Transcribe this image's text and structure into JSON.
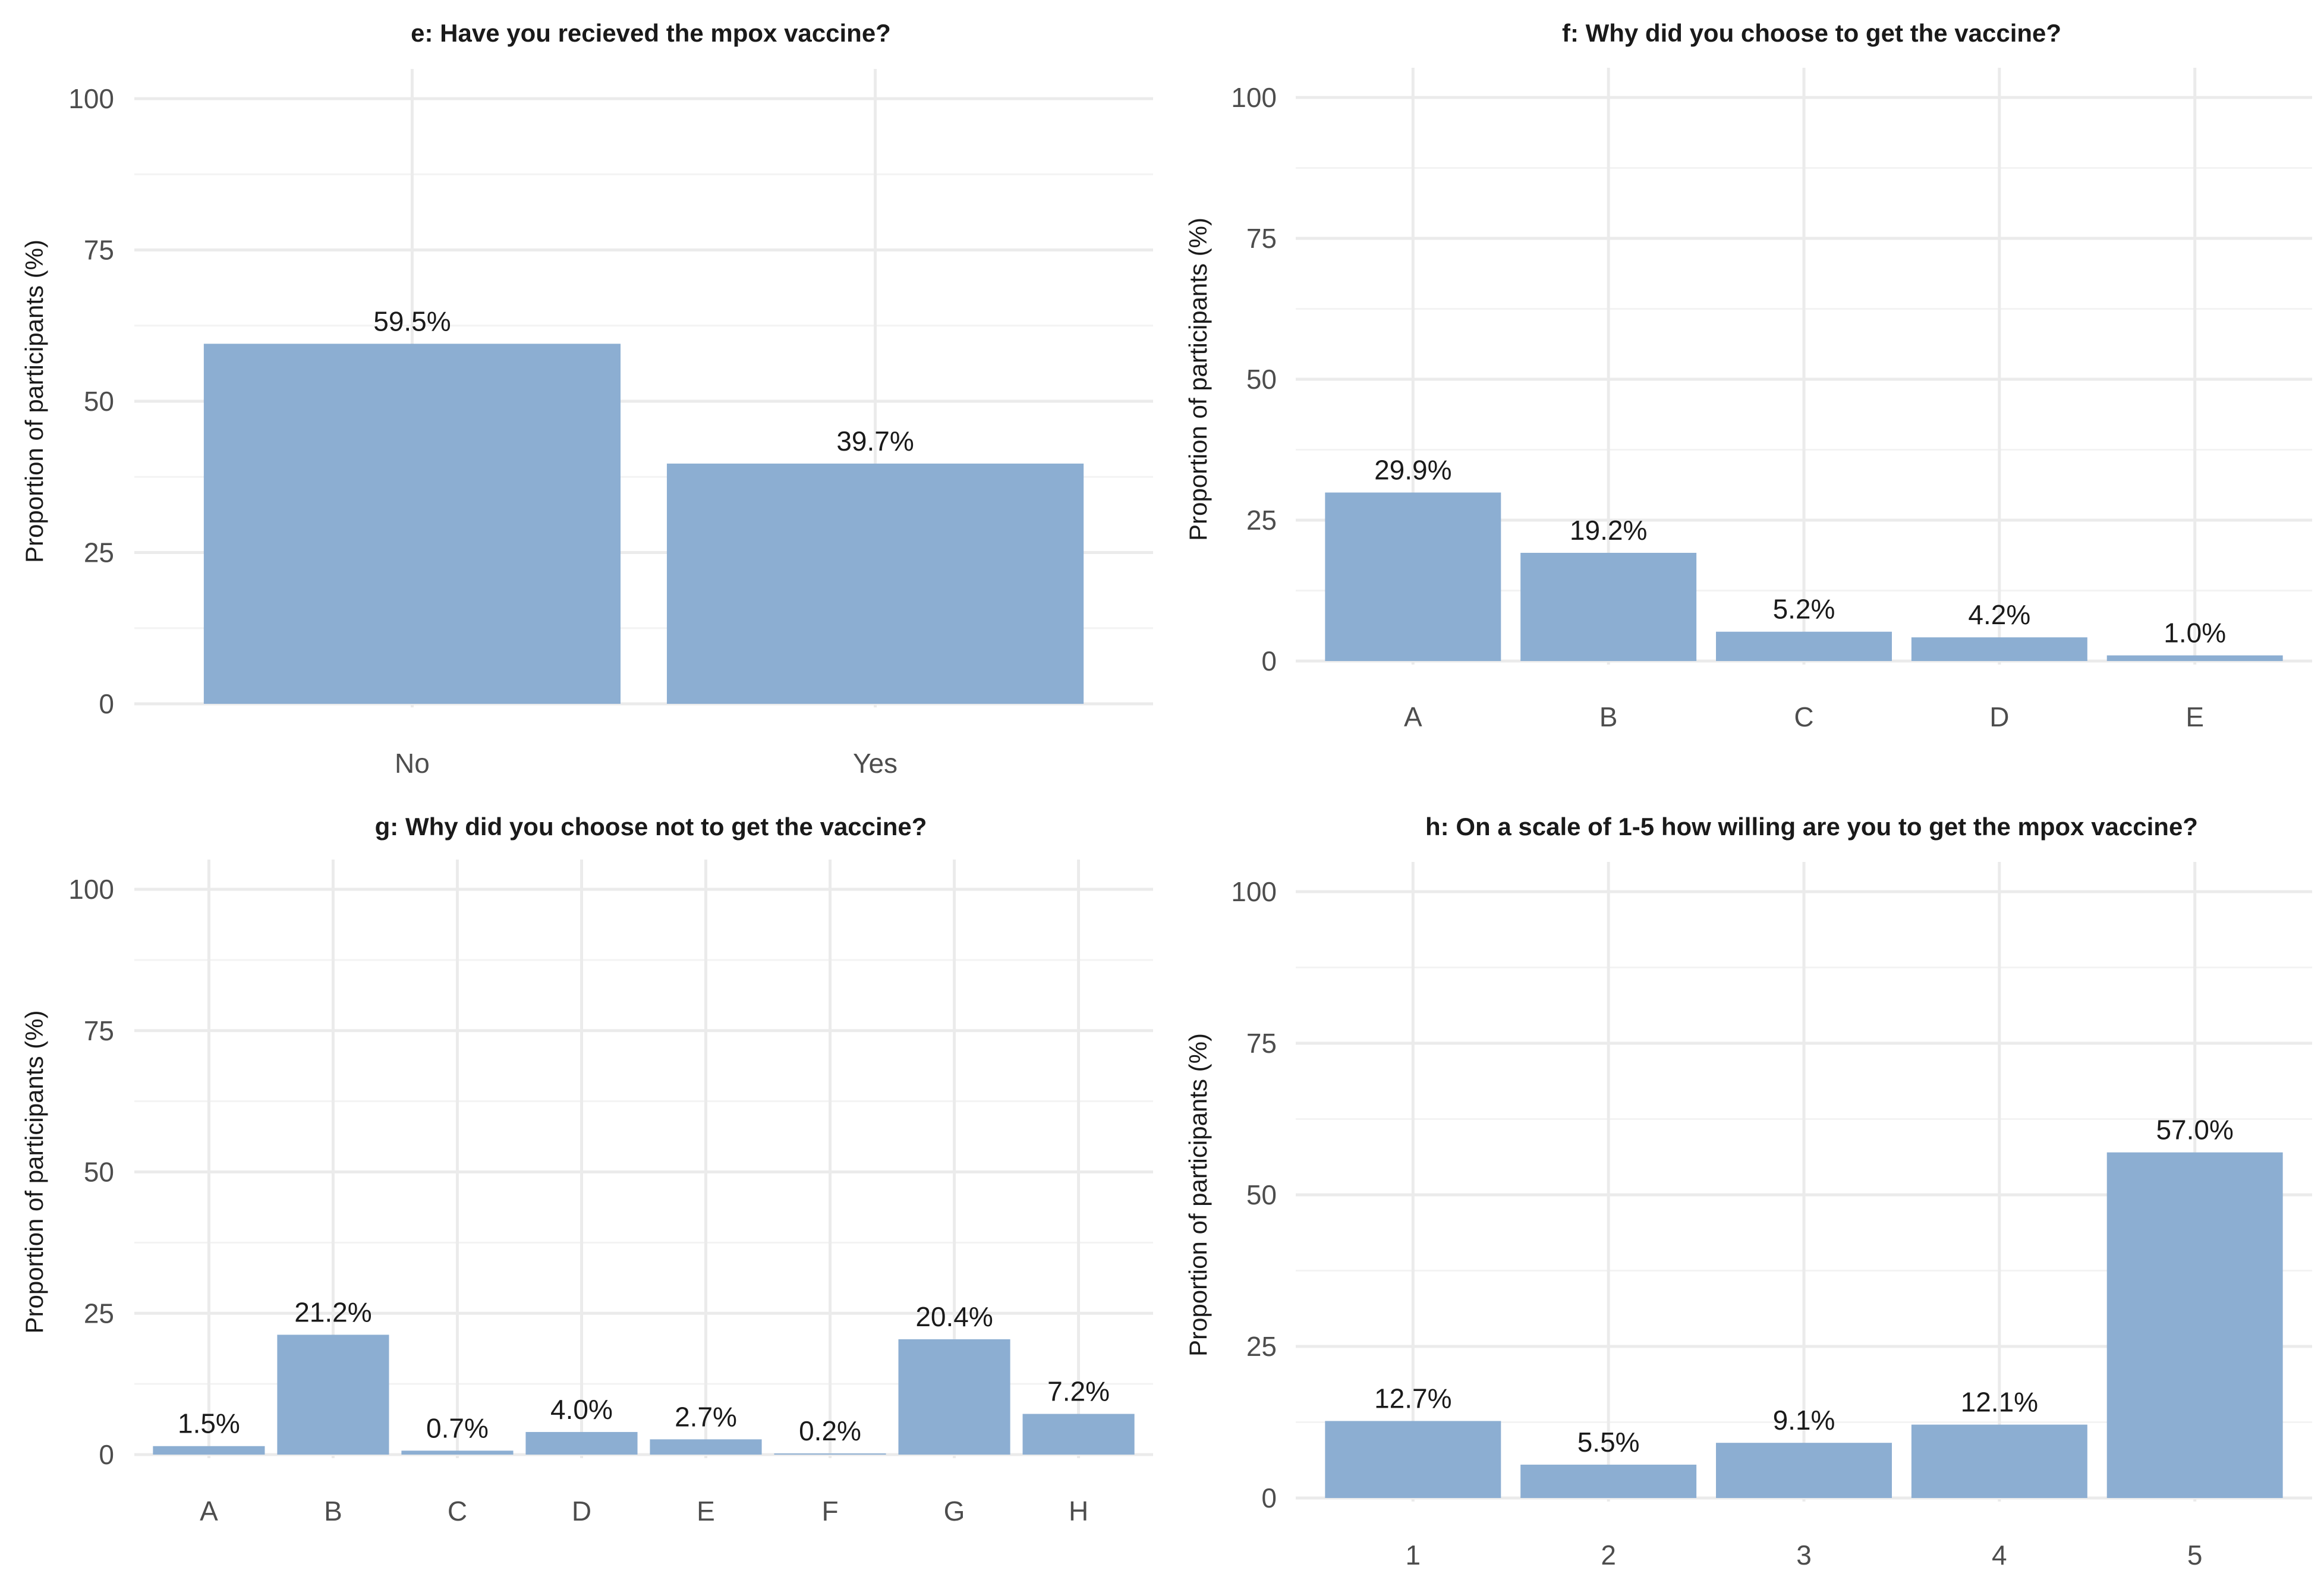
{
  "colors": {
    "bar": "#8caed2"
  },
  "chart_data": [
    {
      "id": "e",
      "type": "bar",
      "title": "e: Have you recieved the mpox vaccine?",
      "xlabel": "",
      "ylabel": "Proportion of participants (%)",
      "ylim": [
        0,
        100
      ],
      "yticks": [
        "0",
        "25",
        "50",
        "75",
        "100"
      ],
      "categories": [
        "No",
        "Yes"
      ],
      "values": [
        59.5,
        39.7
      ],
      "labels": [
        "59.5%",
        "39.7%"
      ]
    },
    {
      "id": "f",
      "type": "bar",
      "title": "f: Why did you choose to get the vaccine?",
      "xlabel": "",
      "ylabel": "Proportion of participants (%)",
      "ylim": [
        0,
        100
      ],
      "yticks": [
        "0",
        "25",
        "50",
        "75",
        "100"
      ],
      "categories": [
        "A",
        "B",
        "C",
        "D",
        "E"
      ],
      "values": [
        29.9,
        19.2,
        5.2,
        4.2,
        1.0
      ],
      "labels": [
        "29.9%",
        "19.2%",
        "5.2%",
        "4.2%",
        "1.0%"
      ]
    },
    {
      "id": "g",
      "type": "bar",
      "title": "g: Why did you choose not to get the vaccine?",
      "xlabel": "",
      "ylabel": "Proportion of participants (%)",
      "ylim": [
        0,
        100
      ],
      "yticks": [
        "0",
        "25",
        "50",
        "75",
        "100"
      ],
      "categories": [
        "A",
        "B",
        "C",
        "D",
        "E",
        "F",
        "G",
        "H"
      ],
      "values": [
        1.5,
        21.2,
        0.7,
        4.0,
        2.7,
        0.2,
        20.4,
        7.2
      ],
      "labels": [
        "1.5%",
        "21.2%",
        "0.7%",
        "4.0%",
        "2.7%",
        "0.2%",
        "20.4%",
        "7.2%"
      ]
    },
    {
      "id": "h",
      "type": "bar",
      "title": "h: On a scale of 1-5 how willing are you to get the mpox vaccine?",
      "xlabel": "",
      "ylabel": "Proportion of participants (%)",
      "ylim": [
        0,
        100
      ],
      "yticks": [
        "0",
        "25",
        "50",
        "75",
        "100"
      ],
      "categories": [
        "1",
        "2",
        "3",
        "4",
        "5"
      ],
      "values": [
        12.7,
        5.5,
        9.1,
        12.1,
        57.0
      ],
      "labels": [
        "12.7%",
        "5.5%",
        "9.1%",
        "12.1%",
        "57.0%"
      ]
    }
  ]
}
